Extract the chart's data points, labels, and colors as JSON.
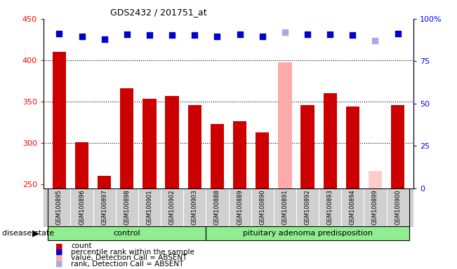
{
  "title": "GDS2432 / 201751_at",
  "samples": [
    "GSM100895",
    "GSM100896",
    "GSM100897",
    "GSM100898",
    "GSM100901",
    "GSM100902",
    "GSM100903",
    "GSM100888",
    "GSM100889",
    "GSM100890",
    "GSM100891",
    "GSM100892",
    "GSM100893",
    "GSM100894",
    "GSM100899",
    "GSM100900"
  ],
  "bar_values": [
    410,
    301,
    260,
    366,
    353,
    357,
    346,
    323,
    326,
    313,
    397,
    346,
    360,
    344,
    266,
    346
  ],
  "bar_colors": [
    "#cc0000",
    "#cc0000",
    "#cc0000",
    "#cc0000",
    "#cc0000",
    "#cc0000",
    "#cc0000",
    "#cc0000",
    "#cc0000",
    "#cc0000",
    "#ffaaaa",
    "#cc0000",
    "#cc0000",
    "#cc0000",
    "#ffcccc",
    "#cc0000"
  ],
  "rank_values": [
    432,
    429,
    425,
    431,
    430,
    430,
    430,
    429,
    431,
    429,
    434,
    431,
    431,
    430,
    424,
    432
  ],
  "rank_colors": [
    "#0000cc",
    "#0000cc",
    "#0000cc",
    "#0000cc",
    "#0000cc",
    "#0000cc",
    "#0000cc",
    "#0000cc",
    "#0000cc",
    "#0000cc",
    "#aaaadd",
    "#0000cc",
    "#0000cc",
    "#0000cc",
    "#aaaadd",
    "#0000cc"
  ],
  "ylim_left": [
    245,
    450
  ],
  "ylim_right": [
    0,
    100
  ],
  "yticks_left": [
    250,
    300,
    350,
    400,
    450
  ],
  "yticks_right": [
    0,
    25,
    50,
    75,
    100
  ],
  "control_count": 7,
  "disease_count": 9,
  "control_label": "control",
  "disease_label": "pituitary adenoma predisposition",
  "disease_state_label": "disease state",
  "legend_items": [
    {
      "label": "count",
      "color": "#cc0000"
    },
    {
      "label": "percentile rank within the sample",
      "color": "#0000cc"
    },
    {
      "label": "value, Detection Call = ABSENT",
      "color": "#ffaaaa"
    },
    {
      "label": "rank, Detection Call = ABSENT",
      "color": "#aaaadd"
    }
  ],
  "gray_bg": "#d0d0d0",
  "green_light": "#90ee90",
  "green_dark": "#44cc44",
  "bar_width": 0.6,
  "rank_marker_size": 40
}
